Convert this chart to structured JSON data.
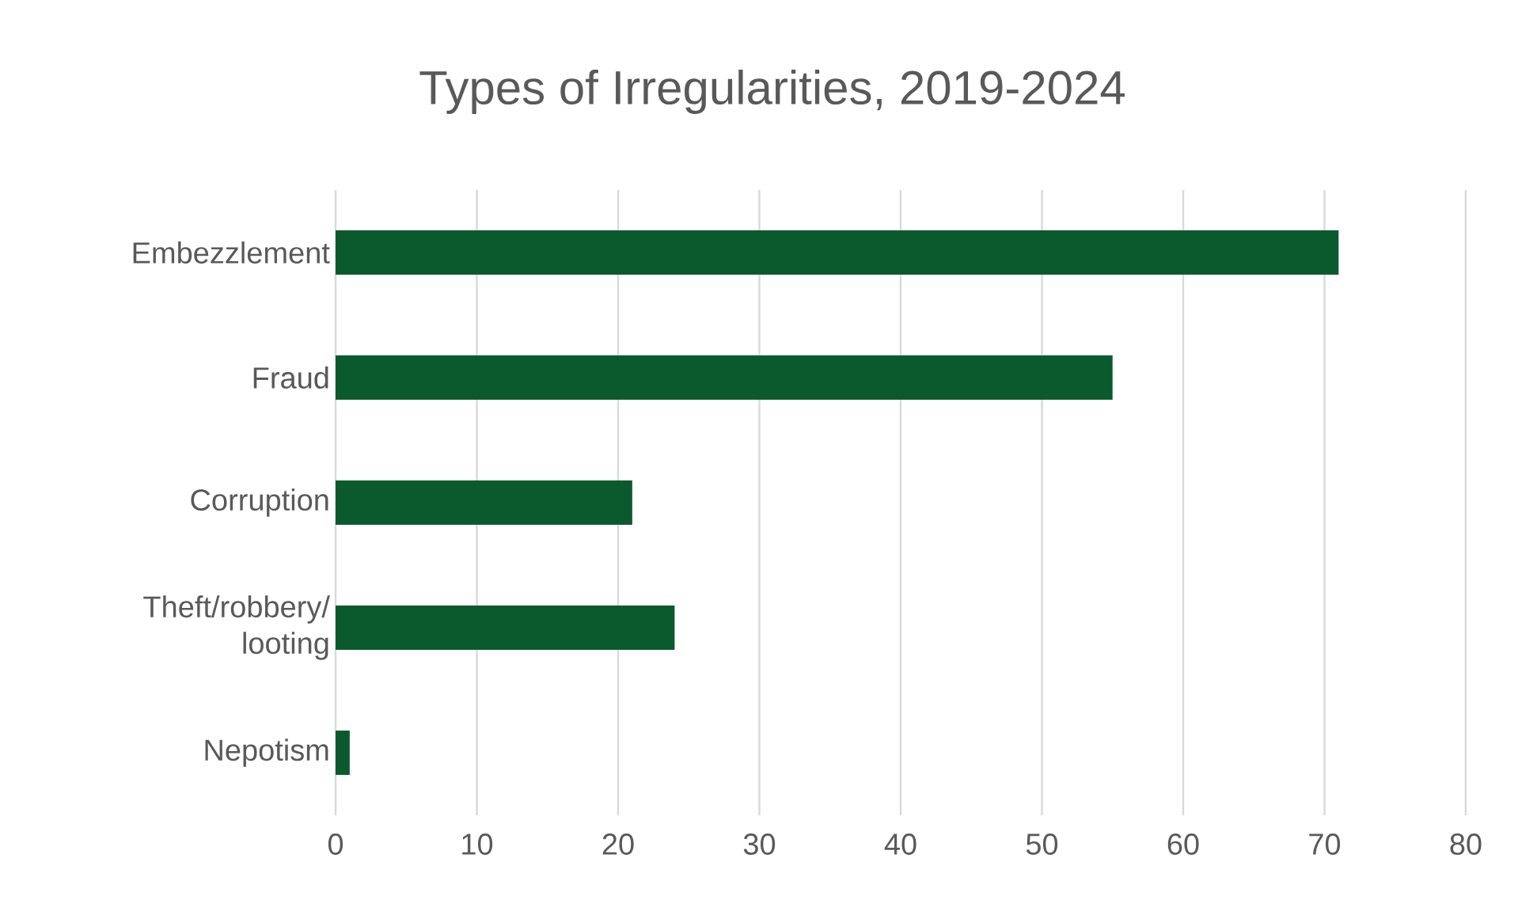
{
  "chart_data": {
    "type": "bar",
    "orientation": "horizontal",
    "title": "Types of Irregularities, 2019-2024",
    "categories": [
      "Embezzlement",
      "Fraud",
      "Corruption",
      "Theft/robbery/ looting",
      "Nepotism"
    ],
    "values": [
      71,
      55,
      21,
      24,
      1
    ],
    "color": "#0b5a2e",
    "xlim": [
      0,
      80
    ],
    "xticks": [
      0,
      10,
      20,
      30,
      40,
      50,
      60,
      70,
      80
    ],
    "grid": "x"
  }
}
